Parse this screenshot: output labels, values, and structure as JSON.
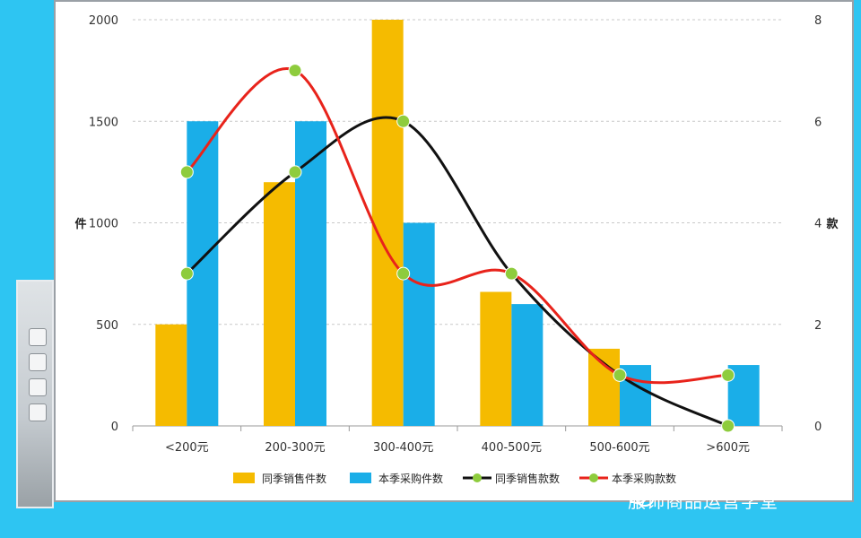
{
  "chart_data": {
    "type": "bar",
    "categories": [
      "<200元",
      "200-300元",
      "300-400元",
      "400-500元",
      "500-600元",
      ">600元"
    ],
    "left_axis": {
      "label": "件",
      "ylim": [
        0,
        2000
      ],
      "ticks": [
        "0",
        "500",
        "1000",
        "1500",
        "2000"
      ]
    },
    "right_axis": {
      "label": "款",
      "ylim": [
        0,
        8
      ],
      "ticks": [
        "0",
        "2",
        "4",
        "6",
        "8"
      ]
    },
    "series": [
      {
        "name": "同季销售件数",
        "kind": "bar",
        "axis": "left",
        "color": "#f5bb00",
        "values": [
          500,
          1200,
          2000,
          660,
          380,
          0
        ]
      },
      {
        "name": "本季采购件数",
        "kind": "bar",
        "axis": "left",
        "color": "#1aaee8",
        "values": [
          1500,
          1500,
          1000,
          600,
          300,
          300
        ]
      },
      {
        "name": "同季销售款数",
        "kind": "line",
        "axis": "right",
        "color": "#111111",
        "marker_color": "#8ecc3d",
        "values": [
          3,
          5,
          6,
          3,
          1,
          0
        ]
      },
      {
        "name": "本季采购款数",
        "kind": "line",
        "axis": "right",
        "color": "#e8231b",
        "marker_color": "#8ecc3d",
        "values": [
          5,
          7,
          3,
          3,
          1,
          1
        ]
      }
    ],
    "grid": true,
    "legend_position": "bottom"
  },
  "watermark": {
    "text": "服饰商品运营学堂",
    "icon": "wechat-icon"
  }
}
